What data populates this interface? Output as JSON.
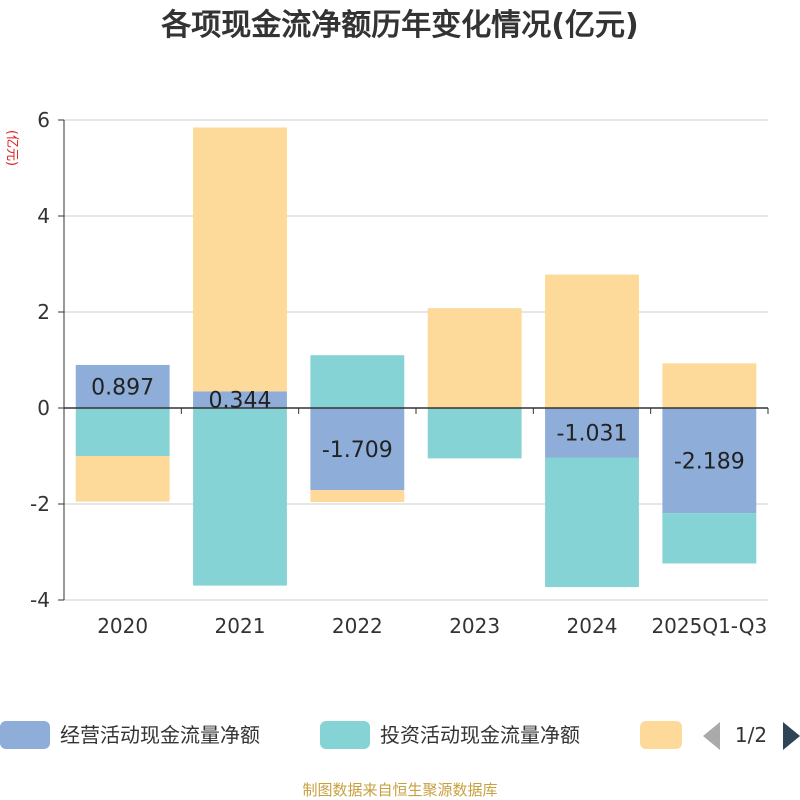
{
  "chart_data": {
    "type": "bar",
    "stacked": true,
    "title": "各项现金流净额历年变化情况(亿元)",
    "ylabel": "(亿元)",
    "ylim": [
      -4,
      6
    ],
    "yticks": [
      -4,
      -2,
      0,
      2,
      4,
      6
    ],
    "grid": true,
    "legend_position": "bottom",
    "categories": [
      "2020",
      "2021",
      "2022",
      "2023",
      "2024",
      "2025Q1-Q3"
    ],
    "series": [
      {
        "name": "经营活动现金流量净额",
        "color": "#8eadd8",
        "values": [
          0.897,
          0.344,
          -1.709,
          0.0,
          -1.031,
          -2.189
        ],
        "labels": [
          "0.897",
          "0.344",
          "-1.709",
          "",
          "-1.031",
          "-2.189"
        ]
      },
      {
        "name": "投资活动现金流量净额",
        "color": "#86d3d6",
        "values": [
          -1.0,
          -3.7,
          1.1,
          -1.05,
          -2.7,
          -1.05
        ],
        "labels": []
      },
      {
        "name": "",
        "color": "#fdd99a",
        "values": [
          -0.95,
          5.5,
          -0.25,
          2.08,
          2.78,
          0.93
        ],
        "labels": []
      }
    ]
  },
  "legend": {
    "items": [
      "经营活动现金流量净额",
      "投资活动现金流量净额",
      ""
    ],
    "page_indicator": "1/2"
  },
  "footer": "制图数据来自恒生聚源数据库"
}
